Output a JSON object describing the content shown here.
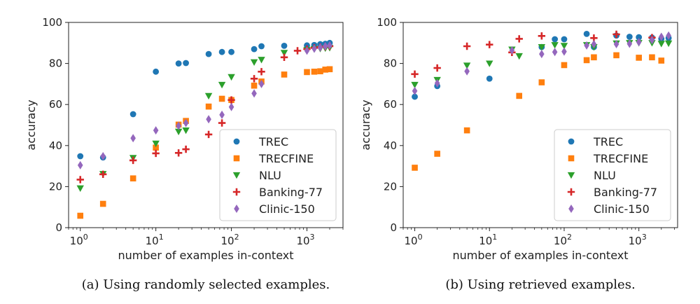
{
  "chart_data": [
    {
      "type": "scatter",
      "caption": "(a) Using randomly selected examples.",
      "xlabel": "number of examples in-context",
      "ylabel": "accuracy",
      "xscale": "log",
      "xlim": [
        0.7,
        3000
      ],
      "ylim": [
        0,
        100
      ],
      "yticks": [
        0,
        20,
        40,
        60,
        80,
        100
      ],
      "xticks": [
        {
          "value": 1,
          "base": "10",
          "exp": "0"
        },
        {
          "value": 10,
          "base": "10",
          "exp": "1"
        },
        {
          "value": 100,
          "base": "10",
          "exp": "2"
        },
        {
          "value": 1000,
          "base": "10",
          "exp": "3"
        }
      ],
      "grid": false,
      "legend": "bottom-right",
      "series": [
        {
          "name": "TREC",
          "marker": "circle",
          "color": "#1f77b4",
          "points": [
            [
              1,
              34.8
            ],
            [
              2,
              34.2
            ],
            [
              5,
              55.3
            ],
            [
              10,
              76.0
            ],
            [
              20,
              80.0
            ],
            [
              25,
              80.2
            ],
            [
              50,
              84.6
            ],
            [
              75,
              85.6
            ],
            [
              100,
              85.6
            ],
            [
              200,
              87.0
            ],
            [
              250,
              88.4
            ],
            [
              500,
              88.6
            ],
            [
              1000,
              88.8
            ],
            [
              1250,
              89.0
            ],
            [
              1500,
              89.4
            ],
            [
              1750,
              89.6
            ],
            [
              2000,
              90.0
            ]
          ]
        },
        {
          "name": "TRECFINE",
          "marker": "square",
          "color": "#ff7f0e",
          "points": [
            [
              1,
              5.8
            ],
            [
              2,
              11.6
            ],
            [
              5,
              24.0
            ],
            [
              10,
              39.0
            ],
            [
              20,
              50.2
            ],
            [
              25,
              52.0
            ],
            [
              50,
              59.0
            ],
            [
              75,
              62.8
            ],
            [
              100,
              62.2
            ],
            [
              200,
              69.2
            ],
            [
              250,
              71.2
            ],
            [
              500,
              74.6
            ],
            [
              1000,
              75.8
            ],
            [
              1250,
              76.0
            ],
            [
              1500,
              76.2
            ],
            [
              1750,
              77.0
            ],
            [
              2000,
              77.2
            ]
          ]
        },
        {
          "name": "NLU",
          "marker": "triangle-down",
          "color": "#2ca02c",
          "points": [
            [
              1,
              19.2
            ],
            [
              2,
              26.2
            ],
            [
              5,
              34.0
            ],
            [
              10,
              41.0
            ],
            [
              20,
              46.8
            ],
            [
              25,
              47.4
            ],
            [
              50,
              64.2
            ],
            [
              75,
              69.6
            ],
            [
              100,
              73.4
            ],
            [
              200,
              80.6
            ],
            [
              250,
              81.8
            ],
            [
              500,
              85.2
            ],
            [
              1000,
              86.6
            ],
            [
              1250,
              87.0
            ],
            [
              1500,
              87.2
            ],
            [
              1750,
              87.4
            ],
            [
              2000,
              87.6
            ]
          ]
        },
        {
          "name": "Banking-77",
          "marker": "plus",
          "color": "#d62728",
          "points": [
            [
              1,
              23.4
            ],
            [
              2,
              26.0
            ],
            [
              5,
              32.8
            ],
            [
              10,
              36.2
            ],
            [
              20,
              36.4
            ],
            [
              25,
              38.2
            ],
            [
              50,
              45.4
            ],
            [
              75,
              51.0
            ],
            [
              100,
              62.2
            ],
            [
              200,
              72.6
            ],
            [
              250,
              76.0
            ],
            [
              500,
              83.0
            ],
            [
              750,
              86.2
            ],
            [
              1000,
              87.0
            ],
            [
              1250,
              87.6
            ],
            [
              1500,
              88.0
            ],
            [
              1750,
              88.2
            ],
            [
              2000,
              88.4
            ]
          ]
        },
        {
          "name": "Clinic-150",
          "marker": "diamond",
          "color": "#9467bd",
          "points": [
            [
              1,
              30.4
            ],
            [
              2,
              34.8
            ],
            [
              5,
              43.6
            ],
            [
              10,
              47.4
            ],
            [
              20,
              49.6
            ],
            [
              25,
              51.0
            ],
            [
              50,
              52.8
            ],
            [
              75,
              55.0
            ],
            [
              100,
              58.8
            ],
            [
              200,
              65.4
            ],
            [
              250,
              70.0
            ],
            [
              1000,
              86.2
            ],
            [
              1250,
              87.2
            ],
            [
              1500,
              87.8
            ],
            [
              1750,
              88.4
            ],
            [
              2000,
              88.8
            ]
          ]
        }
      ]
    },
    {
      "type": "scatter",
      "caption": "(b) Using retrieved examples.",
      "xlabel": "number of examples in-context",
      "ylabel": "accuracy",
      "xscale": "log",
      "xlim": [
        0.7,
        3300
      ],
      "ylim": [
        0,
        100
      ],
      "yticks": [
        0,
        20,
        40,
        60,
        80,
        100
      ],
      "xticks": [
        {
          "value": 1,
          "base": "10",
          "exp": "0"
        },
        {
          "value": 10,
          "base": "10",
          "exp": "1"
        },
        {
          "value": 100,
          "base": "10",
          "exp": "2"
        },
        {
          "value": 1000,
          "base": "10",
          "exp": "3"
        }
      ],
      "grid": false,
      "legend": "bottom-right",
      "series": [
        {
          "name": "TREC",
          "marker": "circle",
          "color": "#1f77b4",
          "points": [
            [
              1,
              63.8
            ],
            [
              2,
              69.0
            ],
            [
              10,
              72.6
            ],
            [
              50,
              88.0
            ],
            [
              75,
              91.8
            ],
            [
              100,
              91.8
            ],
            [
              200,
              94.4
            ],
            [
              250,
              88.0
            ],
            [
              500,
              93.6
            ],
            [
              750,
              93.0
            ],
            [
              1000,
              92.8
            ],
            [
              1500,
              92.6
            ],
            [
              2000,
              92.0
            ],
            [
              2500,
              92.4
            ]
          ]
        },
        {
          "name": "TRECFINE",
          "marker": "square",
          "color": "#ff7f0e",
          "points": [
            [
              1,
              29.2
            ],
            [
              2,
              36.0
            ],
            [
              5,
              47.4
            ],
            [
              25,
              64.2
            ],
            [
              50,
              70.8
            ],
            [
              100,
              79.2
            ],
            [
              200,
              81.6
            ],
            [
              250,
              83.0
            ],
            [
              500,
              84.0
            ],
            [
              1000,
              82.8
            ],
            [
              1500,
              83.0
            ],
            [
              2000,
              81.4
            ]
          ]
        },
        {
          "name": "NLU",
          "marker": "triangle-down",
          "color": "#2ca02c",
          "points": [
            [
              1,
              69.6
            ],
            [
              2,
              72.0
            ],
            [
              5,
              79.0
            ],
            [
              10,
              80.0
            ],
            [
              20,
              86.8
            ],
            [
              25,
              83.6
            ],
            [
              50,
              88.0
            ],
            [
              75,
              89.0
            ],
            [
              100,
              88.6
            ],
            [
              200,
              89.0
            ],
            [
              250,
              88.0
            ],
            [
              500,
              89.8
            ],
            [
              750,
              90.0
            ],
            [
              1000,
              90.0
            ],
            [
              1500,
              90.0
            ],
            [
              2000,
              89.6
            ],
            [
              2500,
              89.8
            ]
          ]
        },
        {
          "name": "Banking-77",
          "marker": "plus",
          "color": "#d62728",
          "points": [
            [
              1,
              74.8
            ],
            [
              2,
              77.8
            ],
            [
              5,
              88.4
            ],
            [
              10,
              89.2
            ],
            [
              20,
              85.4
            ],
            [
              25,
              92.0
            ],
            [
              50,
              93.4
            ],
            [
              250,
              92.4
            ],
            [
              500,
              94.2
            ],
            [
              1500,
              92.6
            ]
          ]
        },
        {
          "name": "Clinic-150",
          "marker": "diamond",
          "color": "#9467bd",
          "points": [
            [
              1,
              66.6
            ],
            [
              2,
              70.4
            ],
            [
              5,
              76.2
            ],
            [
              20,
              86.4
            ],
            [
              50,
              84.6
            ],
            [
              75,
              85.6
            ],
            [
              100,
              85.8
            ],
            [
              200,
              88.8
            ],
            [
              250,
              89.4
            ],
            [
              500,
              89.4
            ],
            [
              750,
              89.6
            ],
            [
              1000,
              90.4
            ],
            [
              1500,
              91.4
            ],
            [
              2000,
              93.0
            ],
            [
              2500,
              93.6
            ]
          ]
        }
      ]
    }
  ]
}
